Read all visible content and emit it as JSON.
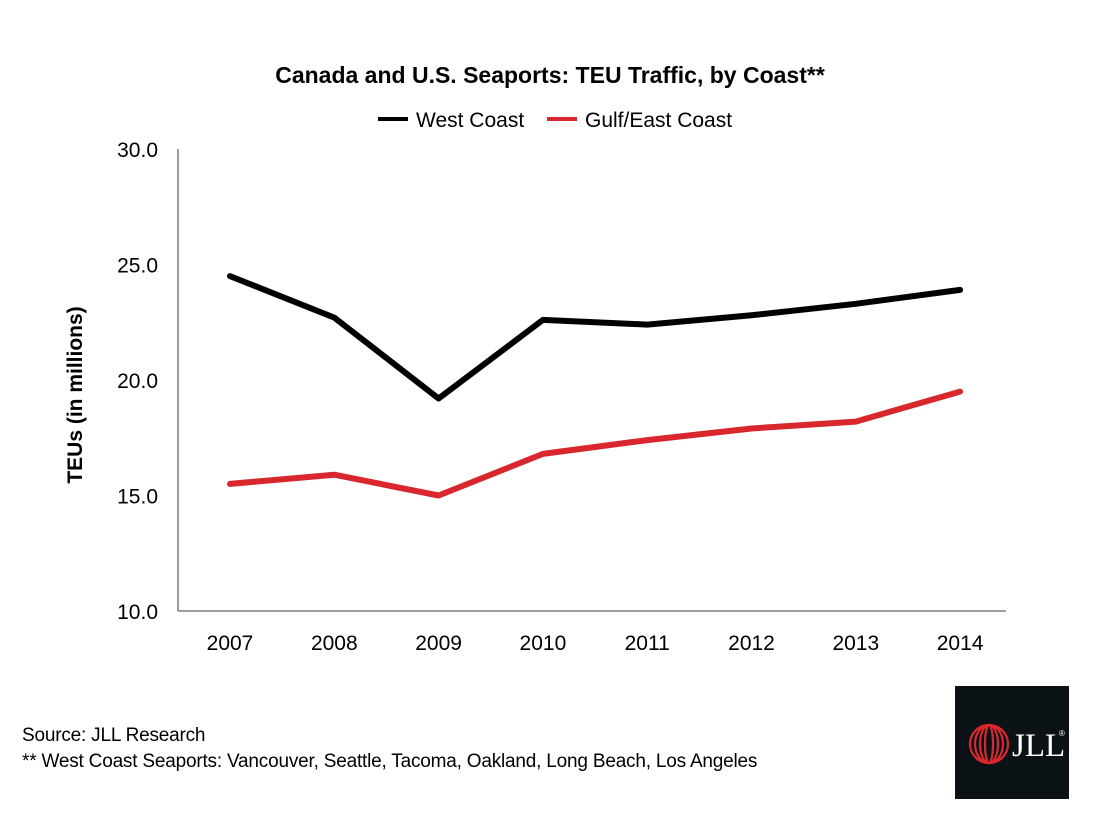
{
  "chart_data": {
    "type": "line",
    "title": "Canada and U.S. Seaports: TEU Traffic, by Coast**",
    "xlabel": "",
    "ylabel": "TEUs (in millions)",
    "categories": [
      "2007",
      "2008",
      "2009",
      "2010",
      "2011",
      "2012",
      "2013",
      "2014"
    ],
    "ylim": [
      10.0,
      30.0
    ],
    "yticks": [
      "10.0",
      "15.0",
      "20.0",
      "25.0",
      "30.0"
    ],
    "grid": false,
    "legend_position": "top-center",
    "series": [
      {
        "name": "West Coast",
        "color": "#000000",
        "values": [
          24.5,
          22.7,
          19.2,
          22.6,
          22.4,
          22.8,
          23.3,
          23.9
        ]
      },
      {
        "name": "Gulf/East Coast",
        "color": "#d9272e",
        "values": [
          15.5,
          15.9,
          15.0,
          16.8,
          17.4,
          17.9,
          18.2,
          19.5
        ]
      }
    ]
  },
  "footnotes": {
    "source": "Source: JLL Research",
    "west_coast": "** West Coast Seaports: Vancouver, Seattle, Tacoma, Oakland, Long Beach, Los Angeles"
  },
  "logo": {
    "icon": "jll-logo-icon",
    "text": "JLL",
    "mark": "®",
    "colors": {
      "background": "#0b1216",
      "red": "#d9272e",
      "text": "#ffffff"
    }
  }
}
